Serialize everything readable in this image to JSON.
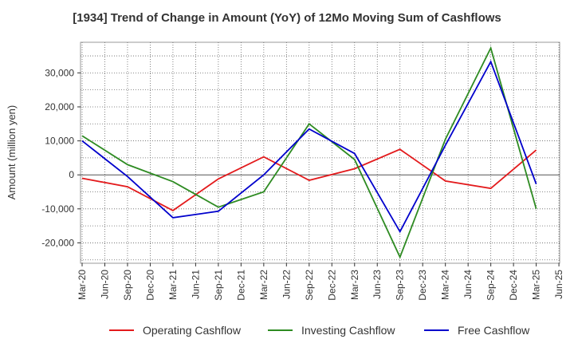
{
  "chart_data": {
    "type": "line",
    "title": "[1934]  Trend of Change in Amount (YoY) of 12Mo Moving Sum of Cashflows",
    "xlabel": "",
    "ylabel": "Amount (million yen)",
    "ylim": [
      -26000,
      39000
    ],
    "yticks": [
      -20000,
      -10000,
      0,
      10000,
      20000,
      30000
    ],
    "ytick_labels": [
      "-20,000",
      "-10,000",
      "0",
      "10,000",
      "20,000",
      "30,000"
    ],
    "x_tick_labels": [
      "Mar-20",
      "Jun-20",
      "Sep-20",
      "Dec-20",
      "Mar-21",
      "Jun-21",
      "Sep-21",
      "Dec-21",
      "Mar-22",
      "Jun-22",
      "Sep-22",
      "Dec-22",
      "Mar-23",
      "Jun-23",
      "Sep-23",
      "Dec-23",
      "Mar-24",
      "Jun-24",
      "Sep-24",
      "Dec-24",
      "Mar-25",
      "Jun-25"
    ],
    "categories": [
      "Mar-20",
      "Sep-20",
      "Mar-21",
      "Sep-21",
      "Mar-22",
      "Sep-22",
      "Mar-23",
      "Sep-23",
      "Mar-24",
      "Sep-24",
      "Mar-25"
    ],
    "grid": true,
    "legend_position": "bottom",
    "series": [
      {
        "name": "Operating Cashflow",
        "color": "#e31a1c",
        "values": [
          -1000,
          -3500,
          -10500,
          -1200,
          5300,
          -1600,
          1800,
          7500,
          -1800,
          -4000,
          7300
        ]
      },
      {
        "name": "Investing Cashflow",
        "color": "#2e8b22",
        "values": [
          11500,
          3000,
          -2000,
          -9500,
          -5000,
          15000,
          4500,
          -24200,
          10500,
          37300,
          -10000
        ]
      },
      {
        "name": "Free Cashflow",
        "color": "#0000cc",
        "values": [
          10000,
          -500,
          -12600,
          -10700,
          0,
          13500,
          6300,
          -16700,
          8700,
          33300,
          -2700
        ]
      }
    ]
  }
}
